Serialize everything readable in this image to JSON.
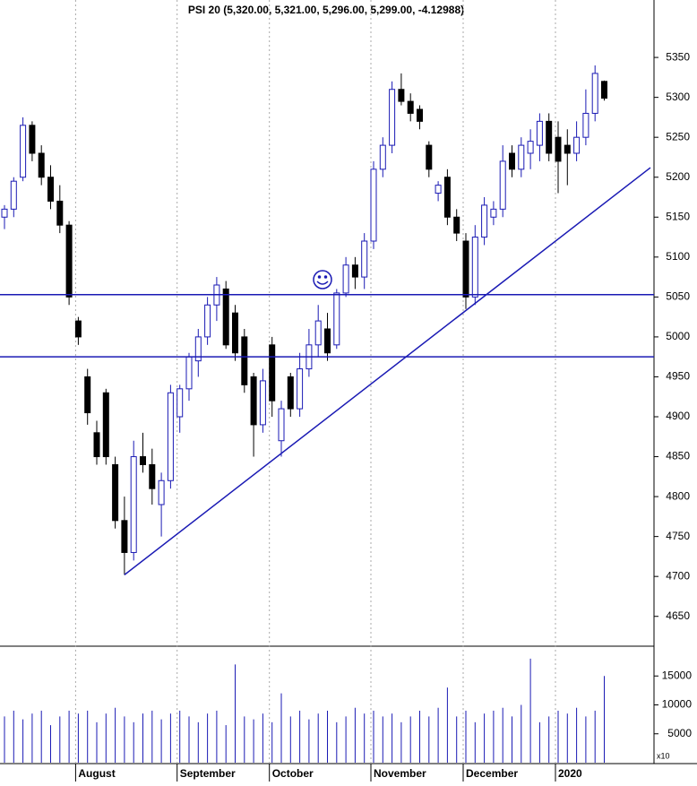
{
  "chart_data": {
    "type": "candlestick",
    "title": "PSI 20 (5,320.00, 5,321.00, 5,296.00, 5,299.00, -4.12988)",
    "categories": [
      null,
      null,
      null,
      null,
      null,
      null,
      null,
      null,
      "August",
      null,
      null,
      null,
      null,
      null,
      null,
      null,
      null,
      null,
      null,
      "September",
      null,
      null,
      null,
      null,
      null,
      null,
      null,
      null,
      null,
      "October",
      null,
      null,
      null,
      null,
      null,
      null,
      null,
      null,
      null,
      null,
      "November",
      null,
      null,
      null,
      null,
      null,
      null,
      null,
      null,
      null,
      "December",
      null,
      null,
      null,
      null,
      null,
      null,
      null,
      null,
      null,
      "2020",
      null,
      null,
      null,
      null,
      null
    ],
    "open": [
      5150,
      5160,
      5200,
      5265,
      5230,
      5200,
      5170,
      5140,
      5020,
      4950,
      4880,
      4930,
      4840,
      4770,
      4730,
      4850,
      4840,
      4790,
      4820,
      4900,
      4935,
      4970,
      5000,
      5040,
      5060,
      5030,
      5000,
      4950,
      4890,
      4990,
      4870,
      4950,
      4910,
      4960,
      4990,
      5010,
      4990,
      5055,
      5090,
      5075,
      5120,
      5210,
      5240,
      5310,
      5295,
      5285,
      5240,
      5180,
      5200,
      5150,
      5120,
      5050,
      5125,
      5150,
      5160,
      5230,
      5210,
      5230,
      5240,
      5270,
      5250,
      5240,
      5230,
      5250,
      5280,
      5320
    ],
    "high": [
      5165,
      5200,
      5275,
      5270,
      5240,
      5215,
      5190,
      5145,
      5025,
      4960,
      4895,
      4935,
      4850,
      4800,
      4870,
      4880,
      4860,
      4830,
      4940,
      4940,
      4980,
      5010,
      5050,
      5075,
      5070,
      5040,
      5010,
      4955,
      4960,
      5000,
      4920,
      4955,
      4980,
      5010,
      5040,
      5030,
      5060,
      5100,
      5100,
      5130,
      5220,
      5250,
      5320,
      5330,
      5305,
      5290,
      5245,
      5195,
      5210,
      5160,
      5130,
      5140,
      5175,
      5170,
      5240,
      5240,
      5250,
      5260,
      5280,
      5280,
      5270,
      5260,
      5270,
      5310,
      5340,
      5321
    ],
    "low": [
      5135,
      5150,
      5195,
      5220,
      5190,
      5160,
      5130,
      5040,
      4990,
      4890,
      4840,
      4840,
      4760,
      4702,
      4720,
      4830,
      4790,
      4750,
      4810,
      4880,
      4920,
      4950,
      4990,
      5020,
      4985,
      4970,
      4930,
      4850,
      4880,
      4900,
      4850,
      4900,
      4900,
      4950,
      4975,
      4970,
      4985,
      5050,
      5060,
      5060,
      5110,
      5200,
      5230,
      5290,
      5270,
      5260,
      5200,
      5170,
      5140,
      5120,
      5035,
      5040,
      5115,
      5140,
      5150,
      5200,
      5200,
      5210,
      5220,
      5220,
      5180,
      5190,
      5220,
      5240,
      5270,
      5296
    ],
    "close": [
      5160,
      5195,
      5265,
      5230,
      5200,
      5170,
      5140,
      5050,
      5000,
      4905,
      4850,
      4850,
      4770,
      4730,
      4850,
      4840,
      4810,
      4820,
      4930,
      4935,
      4975,
      5000,
      5040,
      5065,
      4990,
      4980,
      4940,
      4890,
      4945,
      4920,
      4910,
      4910,
      4960,
      4990,
      5020,
      4980,
      5055,
      5090,
      5075,
      5120,
      5210,
      5240,
      5310,
      5295,
      5280,
      5270,
      5210,
      5190,
      5150,
      5130,
      5050,
      5125,
      5165,
      5160,
      5220,
      5210,
      5240,
      5245,
      5270,
      5230,
      5220,
      5230,
      5250,
      5280,
      5330,
      5299
    ],
    "volume": [
      8000,
      9000,
      7500,
      8500,
      9000,
      6500,
      8000,
      9000,
      8500,
      9000,
      7000,
      8500,
      9500,
      8000,
      7000,
      8500,
      9000,
      7500,
      8500,
      9000,
      8000,
      7000,
      8500,
      9000,
      6500,
      17000,
      8000,
      7500,
      8500,
      7000,
      12000,
      8000,
      9000,
      7500,
      8500,
      9000,
      7000,
      8000,
      9500,
      8500,
      9000,
      8000,
      8500,
      7000,
      8000,
      9000,
      8000,
      9500,
      13000,
      8000,
      9000,
      7000,
      8500,
      9000,
      9500,
      8000,
      10000,
      18000,
      7000,
      8000,
      9000,
      8500,
      9500,
      8000,
      9000,
      15000
    ],
    "levels": [
      5053,
      4975
    ],
    "trendline": {
      "from": [
        13,
        4702
      ],
      "to": [
        70,
        5212
      ]
    },
    "ylim": [
      4625,
      5395
    ],
    "yticks": [
      4650,
      4700,
      4750,
      4800,
      4850,
      4900,
      4950,
      5000,
      5050,
      5100,
      5150,
      5200,
      5250,
      5300,
      5350
    ],
    "vlim": [
      0,
      20000
    ],
    "vticks": [
      5000,
      10000,
      15000
    ],
    "vunit": "x10",
    "up_color": "#ffffff",
    "down_color": "#000000",
    "line_color": "#1a1ab4",
    "grid": true
  }
}
